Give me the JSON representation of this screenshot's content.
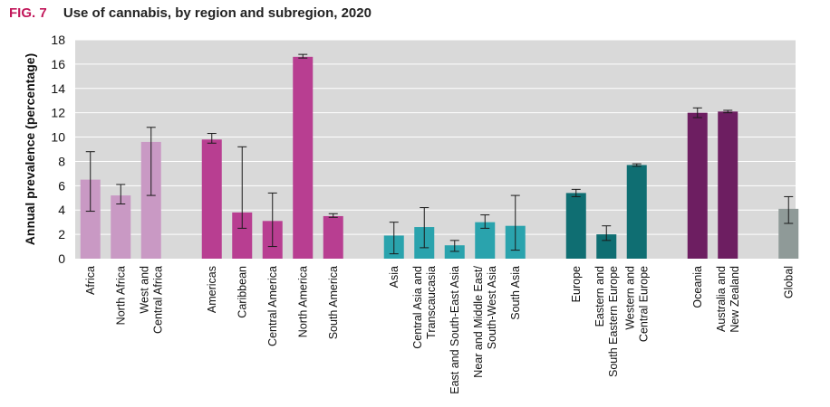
{
  "header": {
    "fig_label": "FIG. 7",
    "title": "Use of cannabis, by region and subregion, 2020"
  },
  "chart_data": {
    "type": "bar",
    "title": "Use of cannabis, by region and subregion, 2020",
    "ylabel": "Annual prevalence (percentage)",
    "xlabel": "",
    "ylim": [
      0,
      18
    ],
    "yticks": [
      0,
      2,
      4,
      6,
      8,
      10,
      12,
      14,
      16,
      18
    ],
    "grid": true,
    "error_bars": true,
    "groups": [
      {
        "color": "#c999c4",
        "bars": [
          {
            "category": [
              "Africa"
            ],
            "value": 6.5,
            "err_low": 3.9,
            "err_high": 8.8
          },
          {
            "category": [
              "North Africa"
            ],
            "value": 5.2,
            "err_low": 4.5,
            "err_high": 6.1
          },
          {
            "category": [
              "West and",
              "Central Africa"
            ],
            "value": 9.6,
            "err_low": 5.2,
            "err_high": 10.8
          }
        ]
      },
      {
        "color": "#b83e91",
        "bars": [
          {
            "category": [
              "Americas"
            ],
            "value": 9.8,
            "err_low": 9.5,
            "err_high": 10.3
          },
          {
            "category": [
              "Caribbean"
            ],
            "value": 3.8,
            "err_low": 2.5,
            "err_high": 9.2
          },
          {
            "category": [
              "Central America"
            ],
            "value": 3.1,
            "err_low": 1.0,
            "err_high": 5.4
          },
          {
            "category": [
              "North America"
            ],
            "value": 16.6,
            "err_low": 16.5,
            "err_high": 16.8
          },
          {
            "category": [
              "South America"
            ],
            "value": 3.5,
            "err_low": 3.4,
            "err_high": 3.7
          }
        ]
      },
      {
        "color": "#2aa3ad",
        "bars": [
          {
            "category": [
              "Asia"
            ],
            "value": 1.9,
            "err_low": 0.4,
            "err_high": 3.0
          },
          {
            "category": [
              "Central Asia and",
              "Transcaucasia"
            ],
            "value": 2.6,
            "err_low": 0.9,
            "err_high": 4.2
          },
          {
            "category": [
              "East and South-East Asia"
            ],
            "value": 1.1,
            "err_low": 0.6,
            "err_high": 1.5
          },
          {
            "category": [
              "Near and Middle East/",
              "South-West Asia"
            ],
            "value": 3.0,
            "err_low": 2.5,
            "err_high": 3.6
          },
          {
            "category": [
              "South Asia"
            ],
            "value": 2.7,
            "err_low": 0.7,
            "err_high": 5.2
          }
        ]
      },
      {
        "color": "#0f6e72",
        "bars": [
          {
            "category": [
              "Europe"
            ],
            "value": 5.4,
            "err_low": 5.1,
            "err_high": 5.7
          },
          {
            "category": [
              "Eastern and",
              "South Eastern Europe"
            ],
            "value": 2.0,
            "err_low": 1.5,
            "err_high": 2.7
          },
          {
            "category": [
              "Western and",
              "Central Europe"
            ],
            "value": 7.7,
            "err_low": 7.6,
            "err_high": 7.8
          }
        ]
      },
      {
        "color": "#6d1e61",
        "bars": [
          {
            "category": [
              "Oceania"
            ],
            "value": 12.0,
            "err_low": 11.6,
            "err_high": 12.4
          },
          {
            "category": [
              "Australia and",
              "New Zealand"
            ],
            "value": 12.1,
            "err_low": 12.0,
            "err_high": 12.2
          }
        ]
      },
      {
        "color": "#8f9a98",
        "bars": [
          {
            "category": [
              "Global"
            ],
            "value": 4.1,
            "err_low": 2.9,
            "err_high": 5.1
          }
        ]
      }
    ]
  }
}
